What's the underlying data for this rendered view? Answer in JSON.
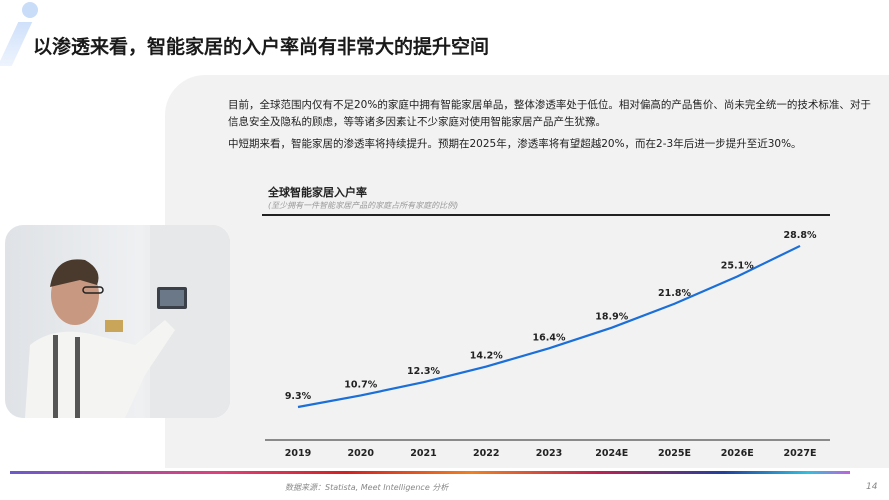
{
  "header": {
    "title": "以渗透来看，智能家居的入户率尚有非常大的提升空间"
  },
  "body": {
    "paragraph1": "目前，全球范围内仅有不足20%的家庭中拥有智能家居单品，整体渗透率处于低位。相对偏高的产品售价、尚未完全统一的技术标准、对于信息安全及隐私的顾虑，等等诸多因素让不少家庭对使用智能家居产品产生犹豫。",
    "paragraph2": "中短期来看，智能家居的渗透率将持续提升。预期在2025年，渗透率将有望超越20%，而在2-3年后进一步提升至近30%。"
  },
  "chart_data": {
    "type": "line",
    "title": "全球智能家居入户率",
    "subtitle": "(至少拥有一件智能家居产品的家庭占所有家庭的比例)",
    "categories": [
      "2019",
      "2020",
      "2021",
      "2022",
      "2023",
      "2024E",
      "2025E",
      "2026E",
      "2027E"
    ],
    "values": [
      9.3,
      10.7,
      12.3,
      14.2,
      16.4,
      18.9,
      21.8,
      25.1,
      28.8
    ],
    "labels": [
      "9.3%",
      "10.7%",
      "12.3%",
      "14.2%",
      "16.4%",
      "18.9%",
      "21.8%",
      "25.1%",
      "28.8%"
    ],
    "line_color": "#1a6fd8",
    "grid": false
  },
  "footer": {
    "source": "数据来源：Statista, Meet Intelligence 分析",
    "page": "14"
  }
}
